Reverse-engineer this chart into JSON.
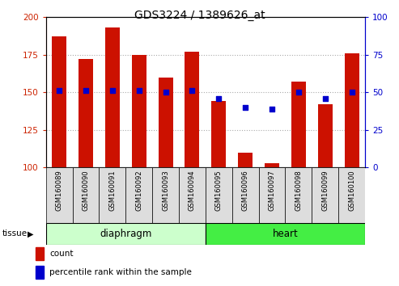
{
  "title": "GDS3224 / 1389626_at",
  "samples": [
    "GSM160089",
    "GSM160090",
    "GSM160091",
    "GSM160092",
    "GSM160093",
    "GSM160094",
    "GSM160095",
    "GSM160096",
    "GSM160097",
    "GSM160098",
    "GSM160099",
    "GSM160100"
  ],
  "count_values": [
    187,
    172,
    193,
    175,
    160,
    177,
    144,
    110,
    103,
    157,
    142,
    176
  ],
  "percentile_values": [
    51,
    51,
    51,
    51,
    50,
    51,
    46,
    40,
    39,
    50,
    46,
    50
  ],
  "ylim_left": [
    100,
    200
  ],
  "ylim_right": [
    0,
    100
  ],
  "yticks_left": [
    100,
    125,
    150,
    175,
    200
  ],
  "yticks_right": [
    0,
    25,
    50,
    75,
    100
  ],
  "bar_color": "#cc1100",
  "dot_color": "#0000cc",
  "left_tick_color": "#cc2200",
  "right_tick_color": "#0000cc",
  "grid_color": "#aaaaaa",
  "bar_width": 0.55,
  "dot_size": 25,
  "diaphragm_color": "#ccffcc",
  "heart_color": "#44ee44",
  "label_box_color": "#dddddd"
}
